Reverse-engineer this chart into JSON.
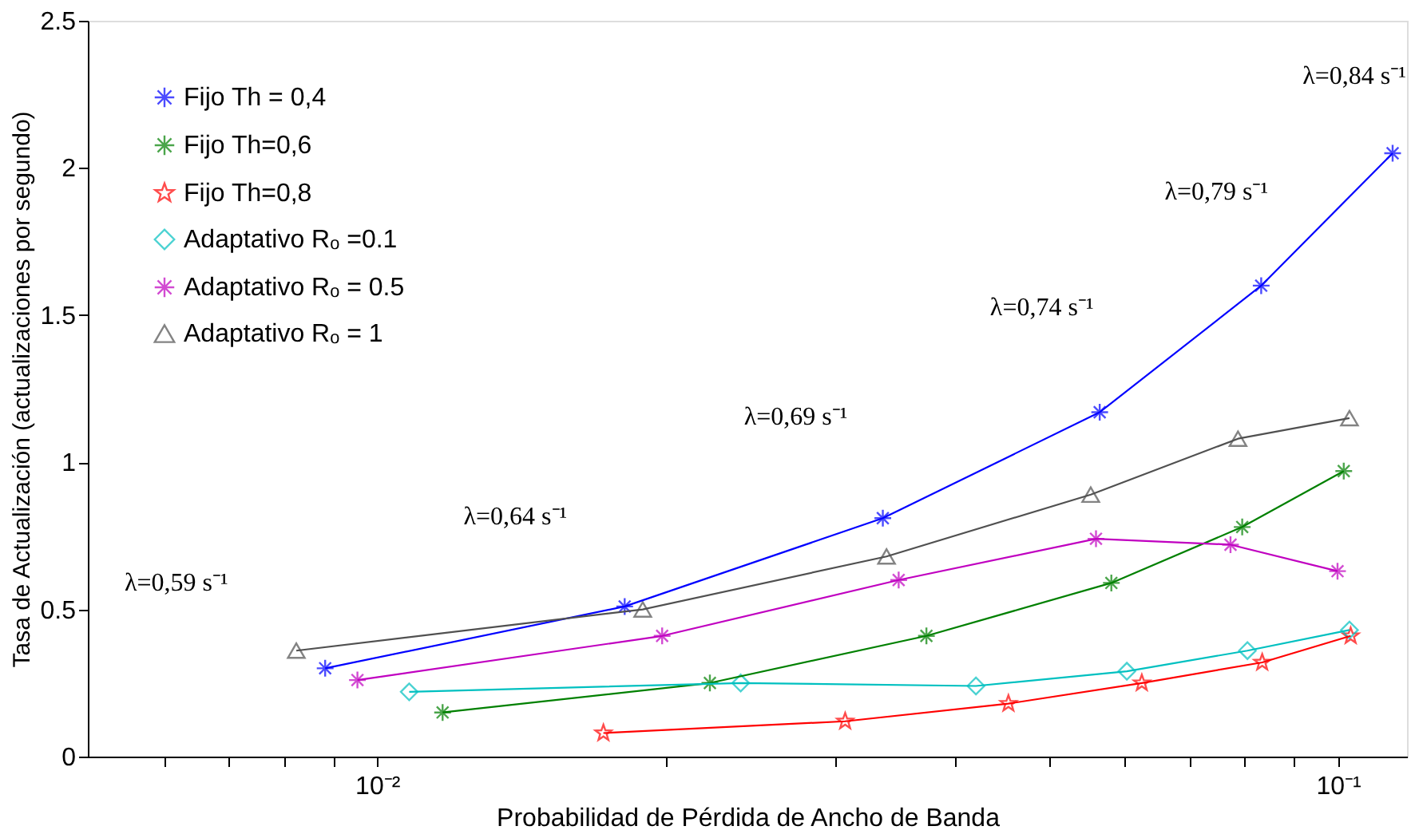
{
  "chart_data": {
    "type": "line",
    "xlabel": "Probabilidad de Pérdida de Ancho de Banda",
    "ylabel": "Tasa de Actualización (actualizaciones por segundo)",
    "log": "x",
    "xlim": [
      0.005,
      0.118
    ],
    "ylim": [
      0,
      2.5
    ],
    "xticks": [
      {
        "value": 0.006,
        "label": null
      },
      {
        "value": 0.007,
        "label": null
      },
      {
        "value": 0.008,
        "label": null
      },
      {
        "value": 0.009,
        "label": null
      },
      {
        "value": 0.01,
        "label": "10⁻²"
      },
      {
        "value": 0.02,
        "label": null
      },
      {
        "value": 0.03,
        "label": null
      },
      {
        "value": 0.04,
        "label": null
      },
      {
        "value": 0.05,
        "label": null
      },
      {
        "value": 0.06,
        "label": null
      },
      {
        "value": 0.07,
        "label": null
      },
      {
        "value": 0.08,
        "label": null
      },
      {
        "value": 0.09,
        "label": null
      },
      {
        "value": 0.1,
        "label": "10⁻¹"
      }
    ],
    "yticks": [
      0,
      0.5,
      1,
      1.5,
      2,
      2.5
    ],
    "grid": false,
    "legend": "top left",
    "line_style": "solid",
    "series": [
      {
        "name": "Fijo Th = 0,4",
        "color": "#0000ff",
        "marker": "cross",
        "x": [
          0.00883,
          0.0181,
          0.0336,
          0.0565,
          0.0832,
          0.114
        ],
        "values": [
          0.3,
          0.51,
          0.81,
          1.17,
          1.6,
          2.05
        ]
      },
      {
        "name": "Fijo Th=0,6",
        "color": "#008000",
        "marker": "cross",
        "x": [
          0.0117,
          0.0222,
          0.0373,
          0.0581,
          0.0795,
          0.1014
        ],
        "values": [
          0.15,
          0.25,
          0.41,
          0.59,
          0.78,
          0.97
        ]
      },
      {
        "name": "Fijo Th=0,8",
        "color": "#ff0000",
        "marker": "star",
        "x": [
          0.0172,
          0.0307,
          0.0454,
          0.0625,
          0.0834,
          0.1031
        ],
        "values": [
          0.08,
          0.12,
          0.18,
          0.25,
          0.32,
          0.41
        ]
      },
      {
        "name": "Adaptativo Rₒ =0.1",
        "color": "#00c0c0",
        "marker": "diamond",
        "x": [
          0.0108,
          0.0239,
          0.042,
          0.0603,
          0.0805,
          0.1028
        ],
        "values": [
          0.22,
          0.25,
          0.24,
          0.29,
          0.36,
          0.43
        ]
      },
      {
        "name": "Adaptativo Rₒ = 0.5",
        "color": "#c000c0",
        "marker": "cross",
        "x": [
          0.00954,
          0.0198,
          0.0349,
          0.056,
          0.0773,
          0.0999
        ],
        "values": [
          0.26,
          0.41,
          0.6,
          0.74,
          0.72,
          0.63
        ]
      },
      {
        "name": "Adaptativo  Rₒ = 1",
        "color": "#505050",
        "marker": "triangle",
        "x": [
          0.00824,
          0.0189,
          0.0339,
          0.0553,
          0.0787,
          0.1028
        ],
        "values": [
          0.36,
          0.5,
          0.68,
          0.89,
          1.08,
          1.15
        ]
      }
    ],
    "annotations": [
      "λ=0,59  s⁻¹",
      "λ=0,64  s⁻¹",
      "λ=0,69  s⁻¹",
      "λ=0,74  s⁻¹",
      "λ=0,79  s⁻¹",
      "λ=0,84  s⁻¹"
    ]
  }
}
